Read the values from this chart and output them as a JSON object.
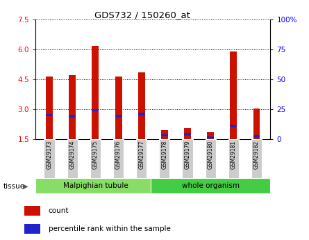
{
  "title": "GDS732 / 150260_at",
  "samples": [
    "GSM29173",
    "GSM29174",
    "GSM29175",
    "GSM29176",
    "GSM29177",
    "GSM29178",
    "GSM29179",
    "GSM29180",
    "GSM29181",
    "GSM29182"
  ],
  "red_values": [
    4.65,
    4.7,
    6.15,
    4.65,
    4.85,
    1.95,
    2.05,
    1.85,
    5.9,
    3.05
  ],
  "blue_values": [
    2.7,
    2.65,
    2.95,
    2.65,
    2.75,
    1.7,
    1.75,
    1.6,
    2.15,
    1.65
  ],
  "y_min": 1.5,
  "y_max": 7.5,
  "y_ticks_left": [
    1.5,
    3.0,
    4.5,
    6.0,
    7.5
  ],
  "y_ticks_right_vals": [
    0,
    25,
    50,
    75,
    100
  ],
  "y_ticks_right_labels": [
    "0",
    "25",
    "50",
    "75",
    "100%"
  ],
  "groups": [
    {
      "label": "Malpighian tubule",
      "start": 0,
      "end": 5,
      "color": "#88dd66"
    },
    {
      "label": "whole organism",
      "start": 5,
      "end": 10,
      "color": "#44cc44"
    }
  ],
  "tissue_label": "tissue",
  "bar_width": 0.3,
  "bar_color_red": "#cc1100",
  "bar_color_blue": "#2222cc",
  "plot_bg": "#ffffff",
  "legend_items": [
    "count",
    "percentile rank within the sample"
  ]
}
